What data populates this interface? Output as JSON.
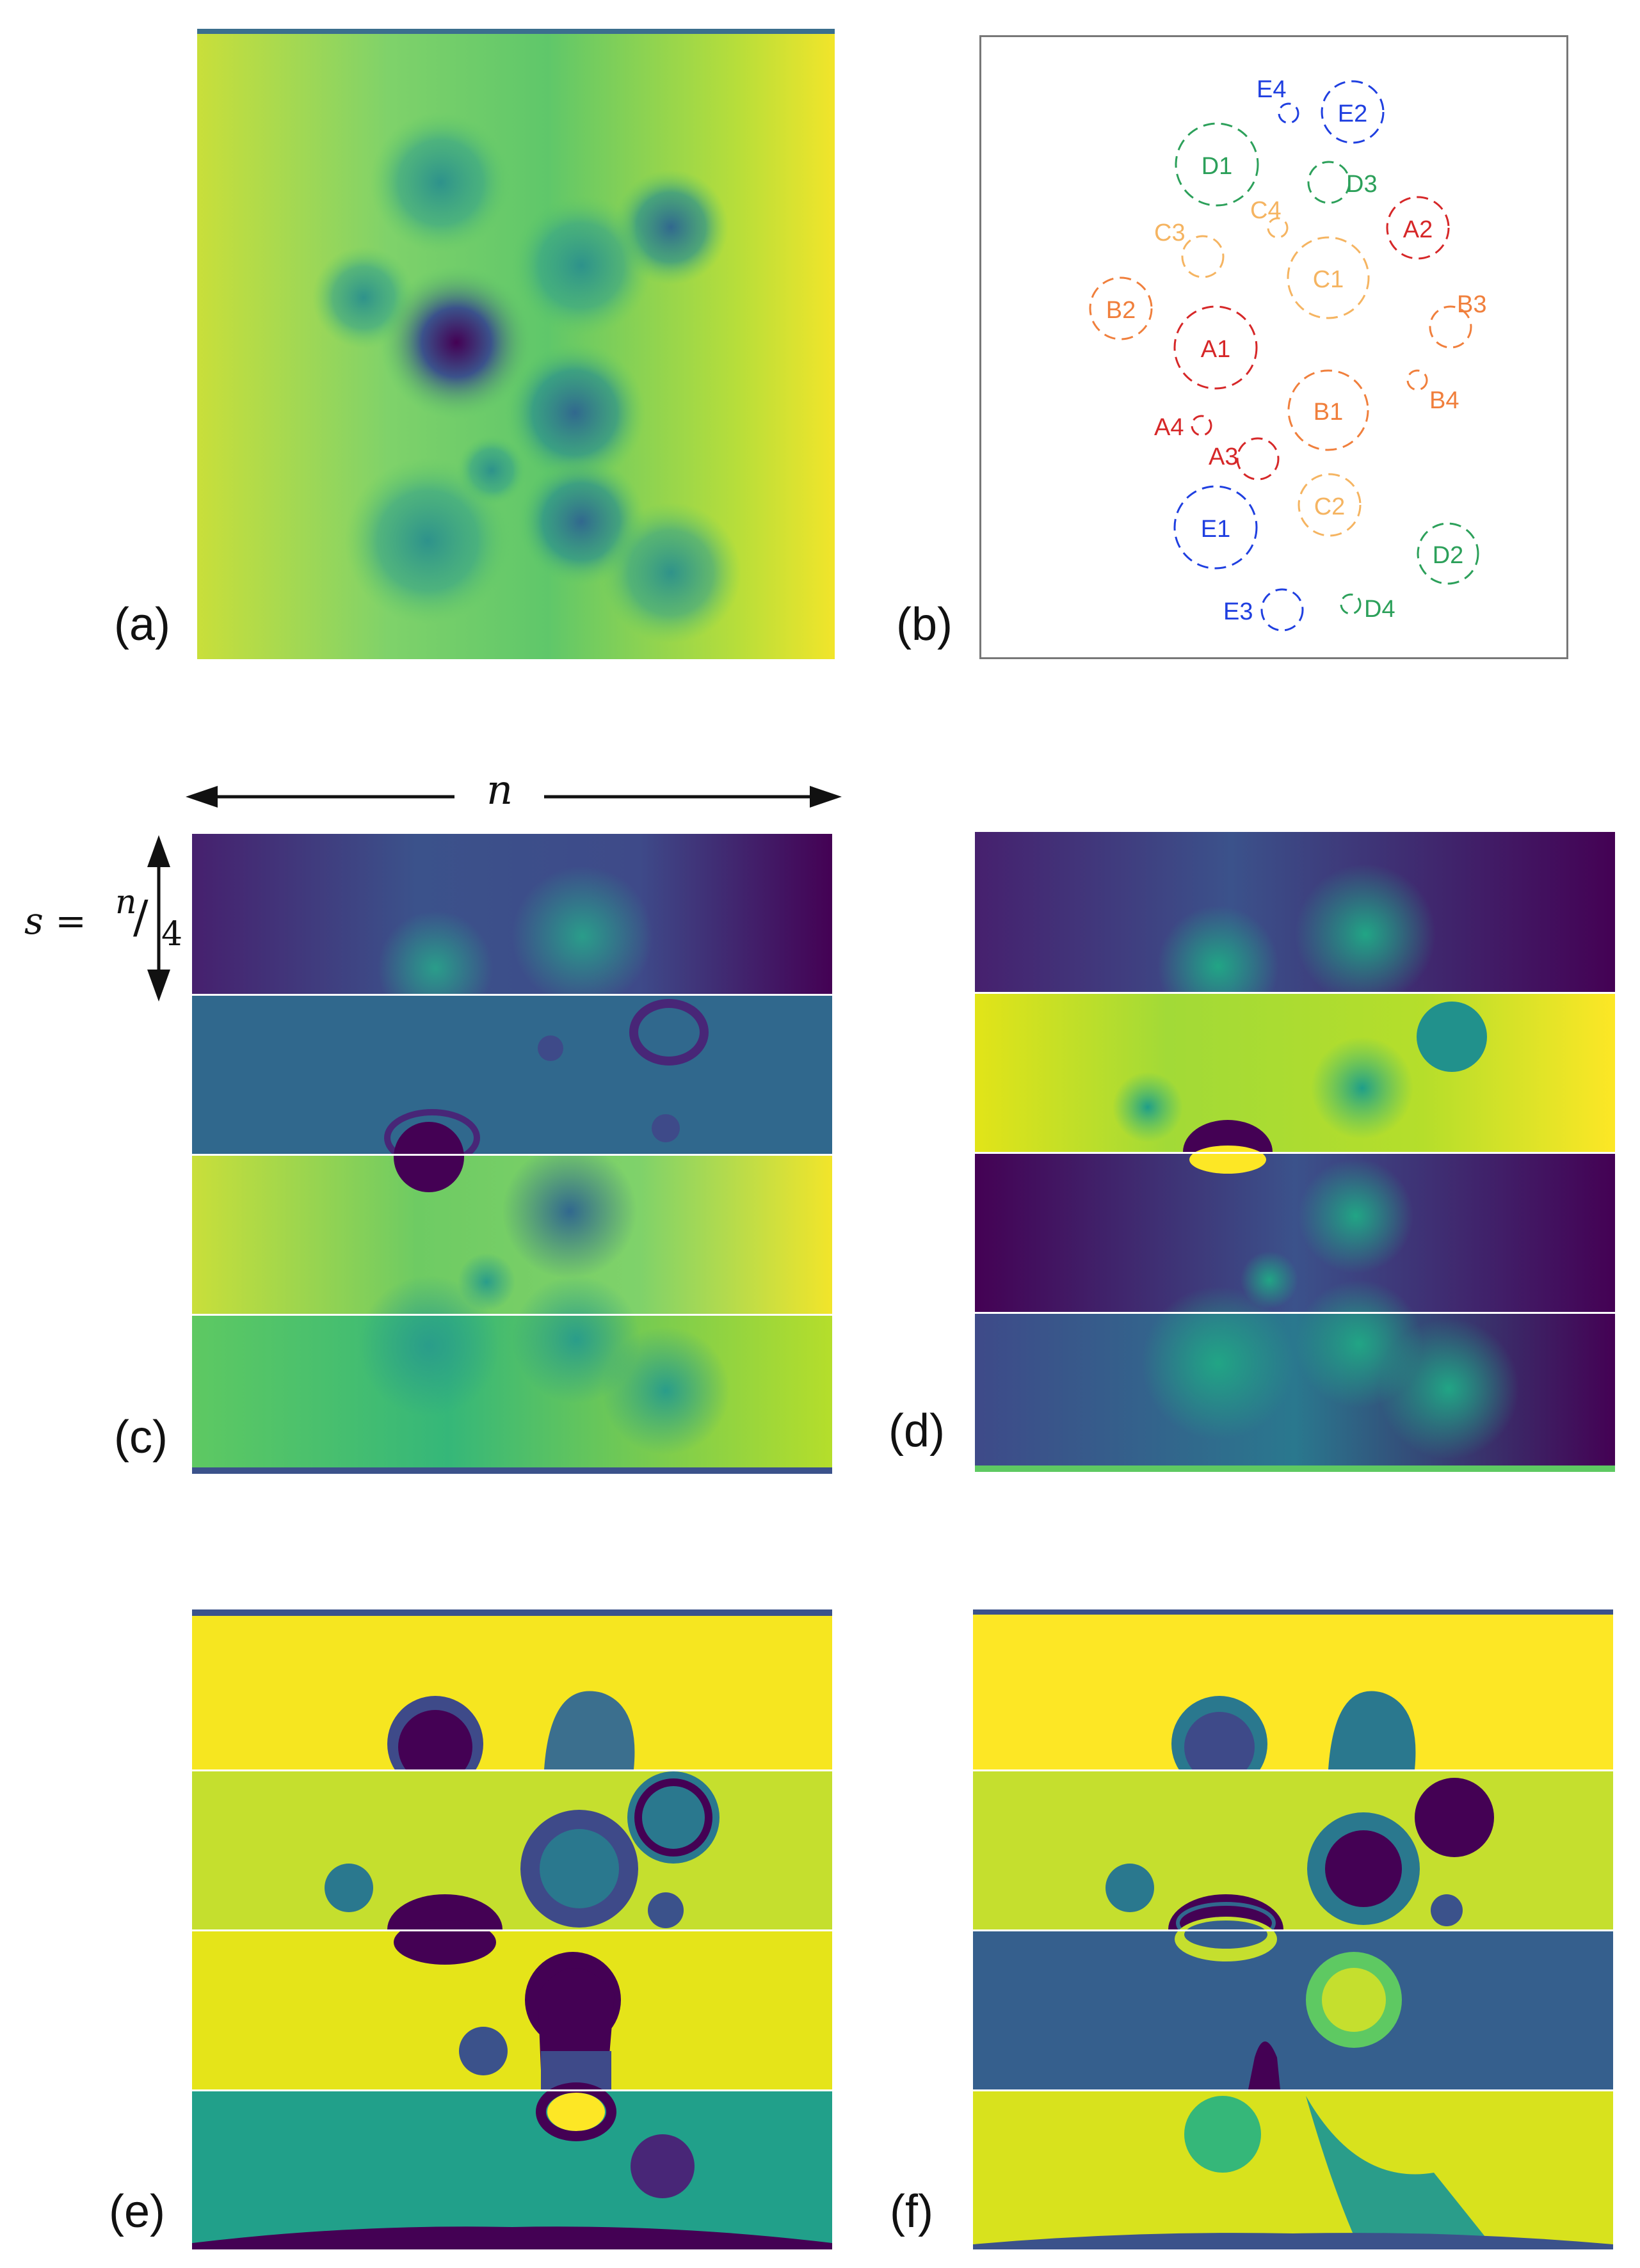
{
  "panels": {
    "a": "(a)",
    "b": "(b)",
    "c": "(c)",
    "d": "(d)",
    "e": "(e)",
    "f": "(f)"
  },
  "annotation": {
    "width_symbol": "n",
    "strip_formula_lhs": "s =",
    "strip_formula_num": "n",
    "strip_formula_den": "4"
  },
  "colors": {
    "viridis_dark": "#440154",
    "viridis_blue": "#3b528b",
    "viridis_teal": "#21918c",
    "viridis_green": "#5ec962",
    "viridis_yellow": "#fde725",
    "red": "#d62728",
    "orange": "#f07f3c",
    "light_orange": "#f5b461",
    "green": "#2ca05a",
    "blue": "#1f3fe0"
  },
  "inclusions": [
    {
      "label": "A1",
      "color": "red"
    },
    {
      "label": "A2",
      "color": "red"
    },
    {
      "label": "A3",
      "color": "red"
    },
    {
      "label": "A4",
      "color": "red"
    },
    {
      "label": "B1",
      "color": "orange"
    },
    {
      "label": "B2",
      "color": "orange"
    },
    {
      "label": "B3",
      "color": "orange"
    },
    {
      "label": "B4",
      "color": "orange"
    },
    {
      "label": "C1",
      "color": "light_orange"
    },
    {
      "label": "C2",
      "color": "light_orange"
    },
    {
      "label": "C3",
      "color": "light_orange"
    },
    {
      "label": "C4",
      "color": "light_orange"
    },
    {
      "label": "D1",
      "color": "green"
    },
    {
      "label": "D2",
      "color": "green"
    },
    {
      "label": "D3",
      "color": "green"
    },
    {
      "label": "D4",
      "color": "green"
    },
    {
      "label": "E1",
      "color": "blue"
    },
    {
      "label": "E2",
      "color": "blue"
    },
    {
      "label": "E3",
      "color": "blue"
    },
    {
      "label": "E4",
      "color": "blue"
    }
  ]
}
